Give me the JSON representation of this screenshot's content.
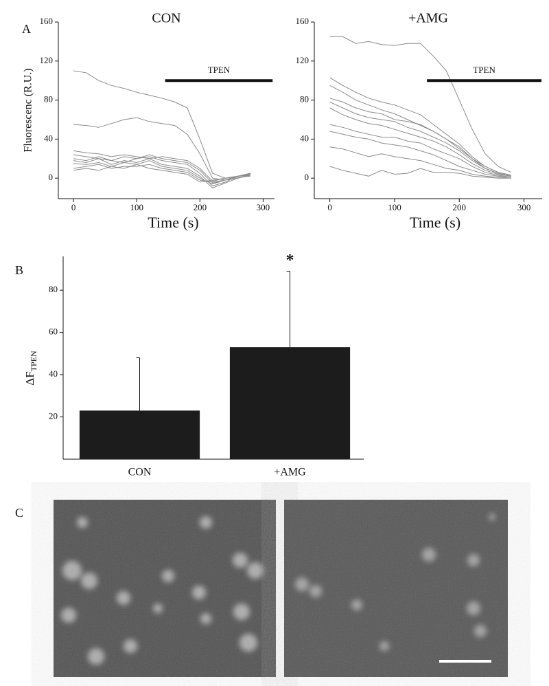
{
  "chart_data": [
    {
      "type": "line",
      "panel": "A",
      "title": "CON",
      "ylabel": "Fluorescenc (R.U.)",
      "xlabel": "Time (s)",
      "x": [
        0,
        20,
        40,
        60,
        80,
        100,
        120,
        140,
        160,
        180,
        200,
        220,
        240,
        260,
        280
      ],
      "color": "#8a8a8a",
      "series": [
        {
          "values": [
            110,
            108,
            100,
            95,
            92,
            88,
            85,
            82,
            78,
            72,
            40,
            5,
            0,
            2,
            4
          ]
        },
        {
          "values": [
            55,
            54,
            52,
            56,
            60,
            62,
            58,
            56,
            54,
            45,
            25,
            0,
            -2,
            2,
            5
          ]
        },
        {
          "values": [
            28,
            26,
            25,
            22,
            24,
            22,
            20,
            22,
            20,
            18,
            10,
            -3,
            0,
            2,
            5
          ]
        },
        {
          "values": [
            24,
            22,
            20,
            18,
            22,
            20,
            24,
            20,
            18,
            16,
            8,
            -5,
            -2,
            0,
            4
          ]
        },
        {
          "values": [
            20,
            18,
            22,
            18,
            16,
            20,
            22,
            18,
            16,
            14,
            5,
            -8,
            -4,
            2,
            5
          ]
        },
        {
          "values": [
            18,
            16,
            20,
            14,
            18,
            16,
            20,
            14,
            12,
            10,
            2,
            -10,
            -5,
            0,
            4
          ]
        },
        {
          "values": [
            15,
            14,
            16,
            12,
            16,
            14,
            18,
            12,
            10,
            8,
            0,
            -6,
            -2,
            2,
            3
          ]
        },
        {
          "values": [
            10,
            12,
            14,
            10,
            12,
            12,
            14,
            10,
            8,
            6,
            -2,
            -4,
            -2,
            0,
            3
          ]
        },
        {
          "values": [
            8,
            10,
            8,
            12,
            10,
            14,
            10,
            8,
            6,
            4,
            -4,
            -2,
            0,
            1,
            2
          ]
        }
      ],
      "annotation": {
        "text": "TPEN",
        "x": [
          145,
          315
        ],
        "y": 100
      },
      "xlim": [
        -24,
        318
      ],
      "xticks": [
        0,
        100,
        200,
        300
      ],
      "ylim": [
        -21,
        160
      ],
      "yticks": [
        0,
        40,
        80,
        120,
        160
      ]
    },
    {
      "type": "line",
      "title": "+AMG",
      "xlabel": "Time (s)",
      "x": [
        0,
        20,
        40,
        60,
        80,
        100,
        120,
        140,
        160,
        180,
        200,
        220,
        240,
        260,
        280
      ],
      "color": "#8a8a8a",
      "series": [
        {
          "values": [
            145,
            145,
            138,
            140,
            137,
            136,
            138,
            138,
            125,
            110,
            80,
            50,
            25,
            12,
            6
          ]
        },
        {
          "values": [
            103,
            95,
            88,
            82,
            78,
            75,
            70,
            65,
            55,
            45,
            35,
            22,
            12,
            6,
            3
          ]
        },
        {
          "values": [
            95,
            88,
            80,
            75,
            70,
            66,
            60,
            54,
            48,
            40,
            30,
            20,
            10,
            5,
            2
          ]
        },
        {
          "values": [
            82,
            78,
            72,
            68,
            66,
            60,
            58,
            55,
            48,
            40,
            32,
            20,
            12,
            6,
            3
          ]
        },
        {
          "values": [
            78,
            72,
            66,
            62,
            60,
            58,
            52,
            48,
            42,
            36,
            28,
            18,
            10,
            5,
            2
          ]
        },
        {
          "values": [
            72,
            65,
            60,
            56,
            54,
            50,
            46,
            42,
            38,
            32,
            24,
            15,
            8,
            4,
            2
          ]
        },
        {
          "values": [
            55,
            52,
            48,
            45,
            42,
            42,
            38,
            36,
            30,
            25,
            20,
            12,
            6,
            3,
            1
          ]
        },
        {
          "values": [
            48,
            45,
            42,
            40,
            36,
            34,
            32,
            28,
            24,
            18,
            12,
            8,
            4,
            2,
            1
          ]
        },
        {
          "values": [
            32,
            30,
            26,
            22,
            25,
            22,
            20,
            18,
            14,
            10,
            8,
            4,
            2,
            1,
            0
          ]
        },
        {
          "values": [
            12,
            8,
            5,
            2,
            8,
            4,
            5,
            10,
            6,
            6,
            5,
            2,
            1,
            0,
            0
          ]
        }
      ],
      "annotation": {
        "text": "TPEN",
        "x": [
          150,
          327
        ],
        "y": 100
      },
      "xlim": [
        -24,
        328
      ],
      "xticks": [
        0,
        100,
        200,
        300
      ],
      "ylim": [
        -21,
        160
      ],
      "yticks": [
        0,
        40,
        80,
        120,
        160
      ]
    },
    {
      "type": "bar",
      "panel": "B",
      "ylabel": {
        "main": "ΔF",
        "sub": "TPEN"
      },
      "categories": [
        "CON",
        "+AMG"
      ],
      "values": [
        23,
        53
      ],
      "errors": [
        25,
        36
      ],
      "color": "#1c1c1c",
      "annotation": "*",
      "ylim": [
        0,
        96
      ],
      "yticks": [
        20,
        40,
        60,
        80
      ]
    }
  ],
  "panel_c": {
    "label": "C"
  }
}
